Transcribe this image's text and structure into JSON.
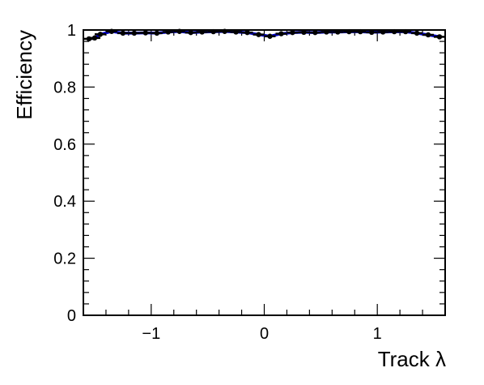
{
  "chart_data": {
    "type": "scatter",
    "title": "",
    "xlabel": "Track λ",
    "ylabel": "Efficiency",
    "xlim": [
      -1.6,
      1.6
    ],
    "ylim": [
      0,
      1
    ],
    "x_ticks": [
      -1,
      0,
      1
    ],
    "x_tick_labels": [
      "−1",
      "0",
      "1"
    ],
    "y_ticks": [
      0,
      0.2,
      0.4,
      0.6,
      0.8,
      1
    ],
    "y_tick_labels": [
      "0",
      "0.2",
      "0.4",
      "0.6",
      "0.8",
      "1"
    ],
    "grid": false,
    "legend": "none",
    "series": [
      {
        "marker_color": "#000000",
        "line_color": "#0000cc",
        "x": [
          -1.55,
          -1.5,
          -1.45,
          -1.35,
          -1.25,
          -1.15,
          -1.05,
          -0.95,
          -0.85,
          -0.75,
          -0.65,
          -0.55,
          -0.45,
          -0.35,
          -0.25,
          -0.15,
          -0.05,
          0.05,
          0.15,
          0.25,
          0.35,
          0.45,
          0.55,
          0.65,
          0.75,
          0.85,
          0.95,
          1.05,
          1.15,
          1.25,
          1.35,
          1.45,
          1.55
        ],
        "y": [
          0.969,
          0.972,
          0.985,
          0.995,
          0.989,
          0.989,
          0.99,
          0.989,
          0.993,
          0.995,
          0.991,
          0.993,
          0.994,
          0.995,
          0.993,
          0.991,
          0.984,
          0.978,
          0.987,
          0.991,
          0.992,
          0.991,
          0.993,
          0.993,
          0.994,
          0.994,
          0.992,
          0.993,
          0.994,
          0.994,
          0.989,
          0.983,
          0.976
        ],
        "x_bin_half_width": 0.05
      }
    ]
  }
}
